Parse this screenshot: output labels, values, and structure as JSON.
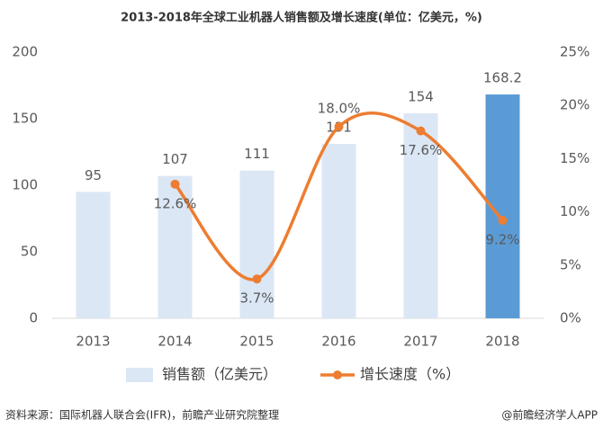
{
  "chart_data": {
    "type": "bar-line",
    "title": "2013-2018年全球工业机器人销售额及增长速度(单位：亿美元，%)",
    "categories": [
      "2013",
      "2014",
      "2015",
      "2016",
      "2017",
      "2018"
    ],
    "series": [
      {
        "name": "销售额（亿美元）",
        "type": "bar",
        "color": "#dbe7f5",
        "colors": [
          "#dbe7f5",
          "#dbe7f5",
          "#dbe7f5",
          "#dbe7f5",
          "#dbe7f5",
          "#5b9bd5"
        ],
        "values": [
          95,
          107,
          111,
          131,
          154,
          168.2
        ]
      },
      {
        "name": "增长速度（%）",
        "type": "line",
        "axis": "y2",
        "color": "#ed7d31",
        "smooth": true,
        "values": [
          null,
          12.6,
          3.7,
          18.0,
          17.6,
          9.2
        ],
        "value_labels": [
          null,
          "12.6%",
          "3.7%",
          "18.0%",
          "17.6%",
          "9.2%"
        ]
      }
    ],
    "ylim": [
      0,
      200
    ],
    "yticks": [
      0,
      50,
      100,
      150,
      200
    ],
    "y2lim": [
      0,
      25
    ],
    "y2ticks": [
      {
        "value": 0,
        "label": "0%"
      },
      {
        "value": 5,
        "label": "5%"
      },
      {
        "value": 10,
        "label": "10%"
      },
      {
        "value": 15,
        "label": "15%"
      },
      {
        "value": 20,
        "label": "20%"
      },
      {
        "value": 25,
        "label": "25%"
      }
    ],
    "grid": false,
    "legend": "bottom",
    "source": "资料来源：国际机器人联合会(IFR)，前瞻产业研究院整理",
    "credit": "@前瞻经济学人APP"
  }
}
